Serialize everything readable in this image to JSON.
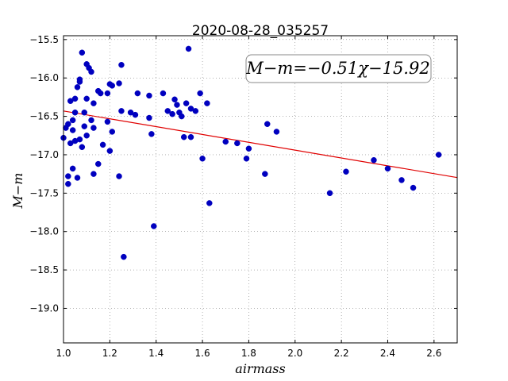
{
  "chart_data": {
    "type": "scatter",
    "title": "2020-08-28_035257",
    "xlabel": "airmass",
    "ylabel": "M−m",
    "xlim": [
      1.0,
      2.7
    ],
    "ylim": [
      -19.45,
      -15.45
    ],
    "y_inverted": true,
    "grid": true,
    "x_ticks": [
      1.0,
      1.2,
      1.4,
      1.6,
      1.8,
      2.0,
      2.2,
      2.4,
      2.6
    ],
    "x_tick_labels": [
      "1.0",
      "1.2",
      "1.4",
      "1.6",
      "1.8",
      "2.0",
      "2.2",
      "2.4",
      "2.6"
    ],
    "y_ticks": [
      -15.5,
      -16.0,
      -16.5,
      -17.0,
      -17.5,
      -18.0,
      -18.5,
      -19.0
    ],
    "y_tick_labels": [
      "−15.5",
      "−16.0",
      "−16.5",
      "−17.0",
      "−17.5",
      "−18.0",
      "−18.5",
      "−19.0"
    ],
    "annotation": "M−m=−0.51χ−15.92",
    "marker_color": "#0000bf",
    "fit_color": "#e00000",
    "fit": {
      "slope": -0.51,
      "intercept": -15.92
    },
    "points": [
      [
        1.0,
        -16.78
      ],
      [
        1.01,
        -16.65
      ],
      [
        1.02,
        -16.6
      ],
      [
        1.02,
        -17.28
      ],
      [
        1.02,
        -17.38
      ],
      [
        1.03,
        -16.3
      ],
      [
        1.03,
        -16.85
      ],
      [
        1.04,
        -16.55
      ],
      [
        1.04,
        -16.68
      ],
      [
        1.04,
        -17.18
      ],
      [
        1.05,
        -16.27
      ],
      [
        1.05,
        -16.45
      ],
      [
        1.05,
        -16.82
      ],
      [
        1.06,
        -16.12
      ],
      [
        1.06,
        -17.3
      ],
      [
        1.07,
        -16.02
      ],
      [
        1.07,
        -16.05
      ],
      [
        1.07,
        -16.8
      ],
      [
        1.08,
        -15.67
      ],
      [
        1.08,
        -16.9
      ],
      [
        1.09,
        -16.45
      ],
      [
        1.09,
        -16.63
      ],
      [
        1.1,
        -15.82
      ],
      [
        1.1,
        -16.27
      ],
      [
        1.1,
        -16.75
      ],
      [
        1.11,
        -15.87
      ],
      [
        1.12,
        -15.92
      ],
      [
        1.12,
        -16.55
      ],
      [
        1.13,
        -16.33
      ],
      [
        1.13,
        -16.65
      ],
      [
        1.13,
        -17.25
      ],
      [
        1.15,
        -16.17
      ],
      [
        1.15,
        -17.12
      ],
      [
        1.16,
        -16.2
      ],
      [
        1.17,
        -16.87
      ],
      [
        1.19,
        -16.2
      ],
      [
        1.19,
        -16.57
      ],
      [
        1.2,
        -16.08
      ],
      [
        1.2,
        -16.95
      ],
      [
        1.21,
        -16.1
      ],
      [
        1.21,
        -16.7
      ],
      [
        1.24,
        -16.07
      ],
      [
        1.24,
        -17.28
      ],
      [
        1.25,
        -15.83
      ],
      [
        1.25,
        -16.43
      ],
      [
        1.26,
        -18.33
      ],
      [
        1.29,
        -16.45
      ],
      [
        1.31,
        -16.48
      ],
      [
        1.32,
        -16.2
      ],
      [
        1.37,
        -16.23
      ],
      [
        1.37,
        -16.52
      ],
      [
        1.38,
        -16.73
      ],
      [
        1.39,
        -17.93
      ],
      [
        1.43,
        -16.2
      ],
      [
        1.45,
        -16.43
      ],
      [
        1.47,
        -16.47
      ],
      [
        1.48,
        -16.28
      ],
      [
        1.49,
        -16.35
      ],
      [
        1.5,
        -16.45
      ],
      [
        1.51,
        -16.5
      ],
      [
        1.52,
        -16.77
      ],
      [
        1.53,
        -16.33
      ],
      [
        1.54,
        -15.62
      ],
      [
        1.55,
        -16.4
      ],
      [
        1.55,
        -16.77
      ],
      [
        1.57,
        -16.43
      ],
      [
        1.59,
        -16.2
      ],
      [
        1.6,
        -17.05
      ],
      [
        1.62,
        -16.33
      ],
      [
        1.63,
        -17.63
      ],
      [
        1.7,
        -16.83
      ],
      [
        1.75,
        -16.85
      ],
      [
        1.79,
        -17.05
      ],
      [
        1.8,
        -16.92
      ],
      [
        1.87,
        -17.25
      ],
      [
        1.88,
        -16.6
      ],
      [
        1.92,
        -16.7
      ],
      [
        2.15,
        -17.5
      ],
      [
        2.22,
        -17.22
      ],
      [
        2.34,
        -17.07
      ],
      [
        2.4,
        -17.18
      ],
      [
        2.46,
        -17.33
      ],
      [
        2.51,
        -17.43
      ],
      [
        2.62,
        -17.0
      ]
    ]
  }
}
